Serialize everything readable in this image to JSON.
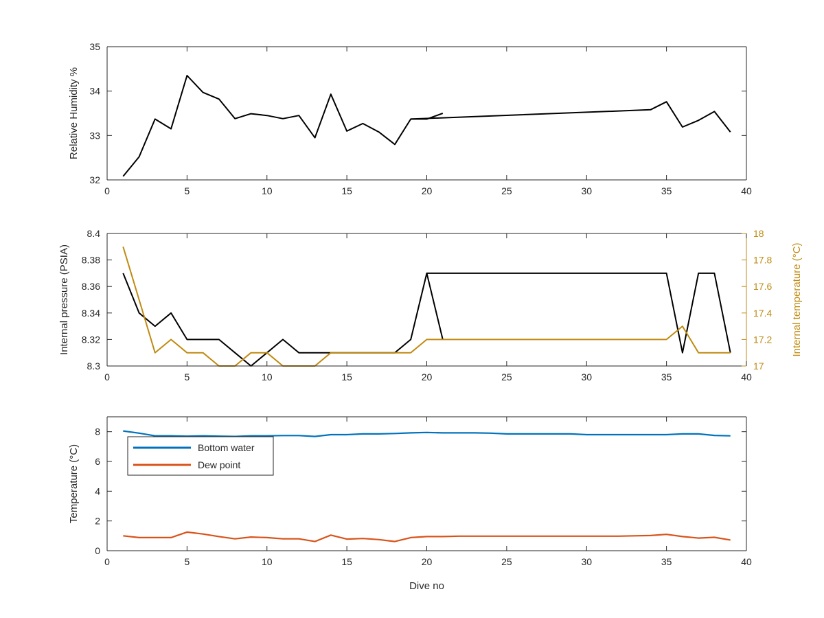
{
  "chart_data": [
    {
      "type": "line",
      "xlim": [
        0,
        40
      ],
      "ylim": [
        32,
        35
      ],
      "xticks": [
        0,
        5,
        10,
        15,
        20,
        25,
        30,
        35,
        40
      ],
      "yticks": [
        32,
        33,
        34,
        35
      ],
      "xlabel": "",
      "ylabel": "Relative Humidity %",
      "grid": false,
      "series": [
        {
          "color": "#000000",
          "x": [
            1,
            2,
            3,
            4,
            5,
            6,
            7,
            8,
            9,
            10,
            11,
            12,
            13,
            14,
            15,
            16,
            17,
            18,
            19,
            20,
            21
          ],
          "y": [
            32.08,
            32.52,
            33.37,
            33.15,
            34.35,
            33.97,
            33.82,
            33.38,
            33.49,
            33.45,
            33.38,
            33.45,
            32.95,
            33.93,
            33.1,
            33.27,
            33.08,
            32.8,
            33.37,
            33.37,
            33.5
          ]
        },
        {
          "color": "#000000",
          "x": [
            19,
            34,
            35,
            36,
            37,
            38,
            39
          ],
          "y": [
            33.37,
            33.58,
            33.76,
            33.19,
            33.34,
            33.54,
            33.08
          ]
        }
      ]
    },
    {
      "type": "line",
      "xlim": [
        0,
        40
      ],
      "ylim": [
        8.3,
        8.4
      ],
      "xticks": [
        0,
        5,
        10,
        15,
        20,
        25,
        30,
        35,
        40
      ],
      "yticks": [
        8.3,
        8.32,
        8.34,
        8.36,
        8.38,
        8.4
      ],
      "ylabel": "Internal pressure (PSIA)",
      "y2lim": [
        17,
        18
      ],
      "y2ticks": [
        17,
        17.2,
        17.4,
        17.6,
        17.8,
        18
      ],
      "y2label": "Internal temperature (°C)",
      "grid": false,
      "series": [
        {
          "axis": "left",
          "color": "#000000",
          "x": [
            1,
            2,
            3,
            4,
            5,
            6,
            7,
            8,
            9,
            10,
            11,
            12,
            13,
            14,
            15,
            16,
            17,
            18,
            19,
            20,
            21
          ],
          "y": [
            8.37,
            8.34,
            8.33,
            8.34,
            8.32,
            8.32,
            8.32,
            8.31,
            8.3,
            8.31,
            8.32,
            8.31,
            8.31,
            8.31,
            8.31,
            8.31,
            8.31,
            8.31,
            8.32,
            8.37,
            8.32
          ]
        },
        {
          "axis": "left",
          "color": "#000000",
          "x": [
            20,
            35,
            36,
            37,
            38,
            39
          ],
          "y": [
            8.37,
            8.37,
            8.31,
            8.37,
            8.37,
            8.31
          ]
        },
        {
          "axis": "right",
          "color": "#C08A10",
          "x": [
            1,
            2,
            3,
            4,
            5,
            6,
            7,
            8,
            9,
            10,
            11,
            12,
            13,
            14,
            15,
            16,
            17,
            18,
            19,
            20,
            21,
            25,
            30,
            35,
            36,
            37,
            38,
            39
          ],
          "y": [
            17.9,
            17.5,
            17.1,
            17.2,
            17.1,
            17.1,
            17.0,
            17.0,
            17.1,
            17.1,
            17.0,
            17.0,
            17.0,
            17.1,
            17.1,
            17.1,
            17.1,
            17.1,
            17.1,
            17.2,
            17.2,
            17.2,
            17.2,
            17.2,
            17.3,
            17.1,
            17.1,
            17.1
          ]
        }
      ]
    },
    {
      "type": "line",
      "xlim": [
        0,
        40
      ],
      "ylim": [
        0,
        9
      ],
      "xticks": [
        0,
        5,
        10,
        15,
        20,
        25,
        30,
        35,
        40
      ],
      "yticks": [
        0,
        2,
        4,
        6,
        8
      ],
      "xlabel": "Dive no",
      "ylabel": "Temperature (°C)",
      "grid": false,
      "legend": "top-left",
      "series": [
        {
          "name": "Bottom water",
          "color": "#0072BD",
          "x": [
            1,
            2,
            3,
            4,
            5,
            6,
            7,
            8,
            9,
            10,
            11,
            12,
            13,
            14,
            15,
            16,
            17,
            18,
            19,
            20,
            21,
            22,
            23,
            24,
            25,
            26,
            27,
            28,
            29,
            30,
            31,
            32,
            33,
            34,
            35,
            36,
            37,
            38,
            39
          ],
          "y": [
            8.05,
            7.9,
            7.72,
            7.72,
            7.7,
            7.72,
            7.7,
            7.68,
            7.72,
            7.72,
            7.74,
            7.74,
            7.68,
            7.8,
            7.8,
            7.85,
            7.85,
            7.88,
            7.92,
            7.95,
            7.92,
            7.92,
            7.92,
            7.9,
            7.85,
            7.85,
            7.85,
            7.85,
            7.85,
            7.8,
            7.8,
            7.8,
            7.8,
            7.8,
            7.8,
            7.85,
            7.85,
            7.75,
            7.72
          ]
        },
        {
          "name": "Dew point",
          "color": "#D95319",
          "x": [
            1,
            2,
            3,
            4,
            5,
            6,
            7,
            8,
            9,
            10,
            11,
            12,
            13,
            14,
            15,
            16,
            17,
            18,
            19,
            20,
            21,
            22,
            23,
            24,
            25,
            26,
            27,
            28,
            29,
            30,
            31,
            32,
            33,
            34,
            35,
            36,
            37,
            38,
            39
          ],
          "y": [
            1.0,
            0.88,
            0.88,
            0.88,
            1.25,
            1.12,
            0.95,
            0.8,
            0.92,
            0.88,
            0.8,
            0.8,
            0.62,
            1.05,
            0.78,
            0.82,
            0.75,
            0.62,
            0.88,
            0.95,
            0.95,
            0.98,
            0.98,
            0.98,
            0.98,
            0.98,
            0.98,
            0.98,
            0.98,
            0.98,
            0.98,
            0.98,
            1.0,
            1.02,
            1.1,
            0.95,
            0.85,
            0.9,
            0.72
          ]
        }
      ]
    }
  ]
}
